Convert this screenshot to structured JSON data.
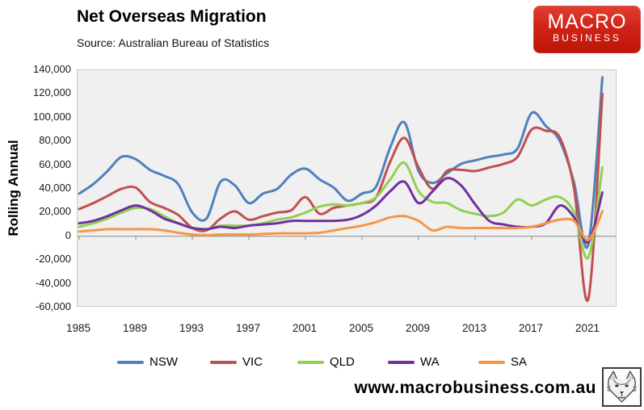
{
  "header": {
    "title": "Net Overseas Migration",
    "source": "Source: Australian Bureau of Statistics",
    "logo": {
      "line1": "MACRO",
      "line2": "BUSINESS",
      "bg_color": "#d02318",
      "text_color": "#ffffff"
    }
  },
  "chart_data": {
    "type": "line",
    "title": "Net Overseas Migration",
    "subtitle": "Source: Australian Bureau of Statistics",
    "xlabel": "",
    "ylabel": "Rolling Annual",
    "xlim": [
      1985,
      2023
    ],
    "ylim": [
      -60000,
      140000
    ],
    "ytick_step": 20000,
    "grid": false,
    "legend_position": "bottom",
    "plot_bg": "#f0f0f0",
    "axis_line_color": "#878787",
    "plot_border_color": "#c6c6c6",
    "xticks": [
      1985,
      1989,
      1993,
      1997,
      2001,
      2005,
      2009,
      2013,
      2017,
      2021
    ],
    "x_tick_labels": [
      "1985",
      "1989",
      "1993",
      "1997",
      "2001",
      "2005",
      "2009",
      "2013",
      "2017",
      "2021"
    ],
    "y_tick_labels": [
      "140,000",
      "120,000",
      "100,000",
      "80,000",
      "60,000",
      "40,000",
      "20,000",
      "0",
      "-20,000",
      "-40,000",
      "-60,000"
    ],
    "x": [
      1985,
      1986,
      1987,
      1988,
      1989,
      1990,
      1991,
      1992,
      1993,
      1994,
      1995,
      1996,
      1997,
      1998,
      1999,
      2000,
      2001,
      2002,
      2003,
      2004,
      2005,
      2006,
      2007,
      2008,
      2009,
      2010,
      2011,
      2012,
      2013,
      2014,
      2015,
      2016,
      2017,
      2018,
      2019,
      2020,
      2021,
      2022
    ],
    "series": [
      {
        "name": "NSW",
        "color": "#4F81BD",
        "values": [
          36000,
          44000,
          55000,
          67000,
          65000,
          56000,
          51000,
          44000,
          20000,
          15000,
          46000,
          43000,
          28000,
          36000,
          40000,
          52000,
          57000,
          48000,
          41000,
          30000,
          36000,
          42000,
          75000,
          96000,
          55000,
          45000,
          53000,
          61000,
          64000,
          67000,
          69000,
          74000,
          104000,
          93000,
          80000,
          45000,
          -7000,
          134000
        ]
      },
      {
        "name": "VIC",
        "color": "#C0504D",
        "values": [
          23000,
          28000,
          34000,
          40000,
          41000,
          29000,
          24000,
          18000,
          7000,
          5000,
          15000,
          21000,
          14000,
          17000,
          20000,
          22000,
          33000,
          19000,
          24000,
          26000,
          28000,
          33000,
          63000,
          83000,
          58000,
          40000,
          55000,
          56000,
          55000,
          58000,
          61000,
          67000,
          90000,
          89000,
          83000,
          40000,
          -53000,
          120000
        ]
      },
      {
        "name": "QLD",
        "color": "#92D050",
        "values": [
          8000,
          11000,
          15000,
          20000,
          24000,
          23000,
          17000,
          11000,
          7000,
          6000,
          9000,
          9000,
          9000,
          11000,
          14000,
          16000,
          20000,
          25000,
          27000,
          26000,
          28000,
          33000,
          48000,
          62000,
          38000,
          29000,
          28000,
          22000,
          19000,
          17000,
          20000,
          31000,
          26000,
          31000,
          33000,
          20000,
          -18000,
          58000
        ]
      },
      {
        "name": "WA",
        "color": "#7030A0",
        "values": [
          11000,
          13000,
          17000,
          22000,
          26000,
          22000,
          15000,
          11000,
          7000,
          6000,
          8000,
          7000,
          9000,
          10000,
          11000,
          13000,
          13000,
          13000,
          13000,
          14000,
          18000,
          26000,
          38000,
          46000,
          28000,
          38000,
          49000,
          43000,
          27000,
          13000,
          10000,
          8000,
          8000,
          11000,
          26000,
          16000,
          -5000,
          37000
        ]
      },
      {
        "name": "SA",
        "color": "#F79646",
        "values": [
          4000,
          5000,
          6000,
          6000,
          6000,
          6000,
          5000,
          3000,
          1500,
          1000,
          1500,
          1500,
          1500,
          2000,
          2500,
          2500,
          2500,
          3000,
          5000,
          7000,
          9000,
          12000,
          16000,
          17000,
          13000,
          5000,
          8000,
          7000,
          7000,
          7000,
          7000,
          7000,
          8000,
          11000,
          14000,
          13000,
          -3000,
          21000
        ]
      }
    ]
  },
  "footer": {
    "website": "www.macrobusiness.com.au",
    "wolf_logo": "wolf-stamp-icon"
  }
}
